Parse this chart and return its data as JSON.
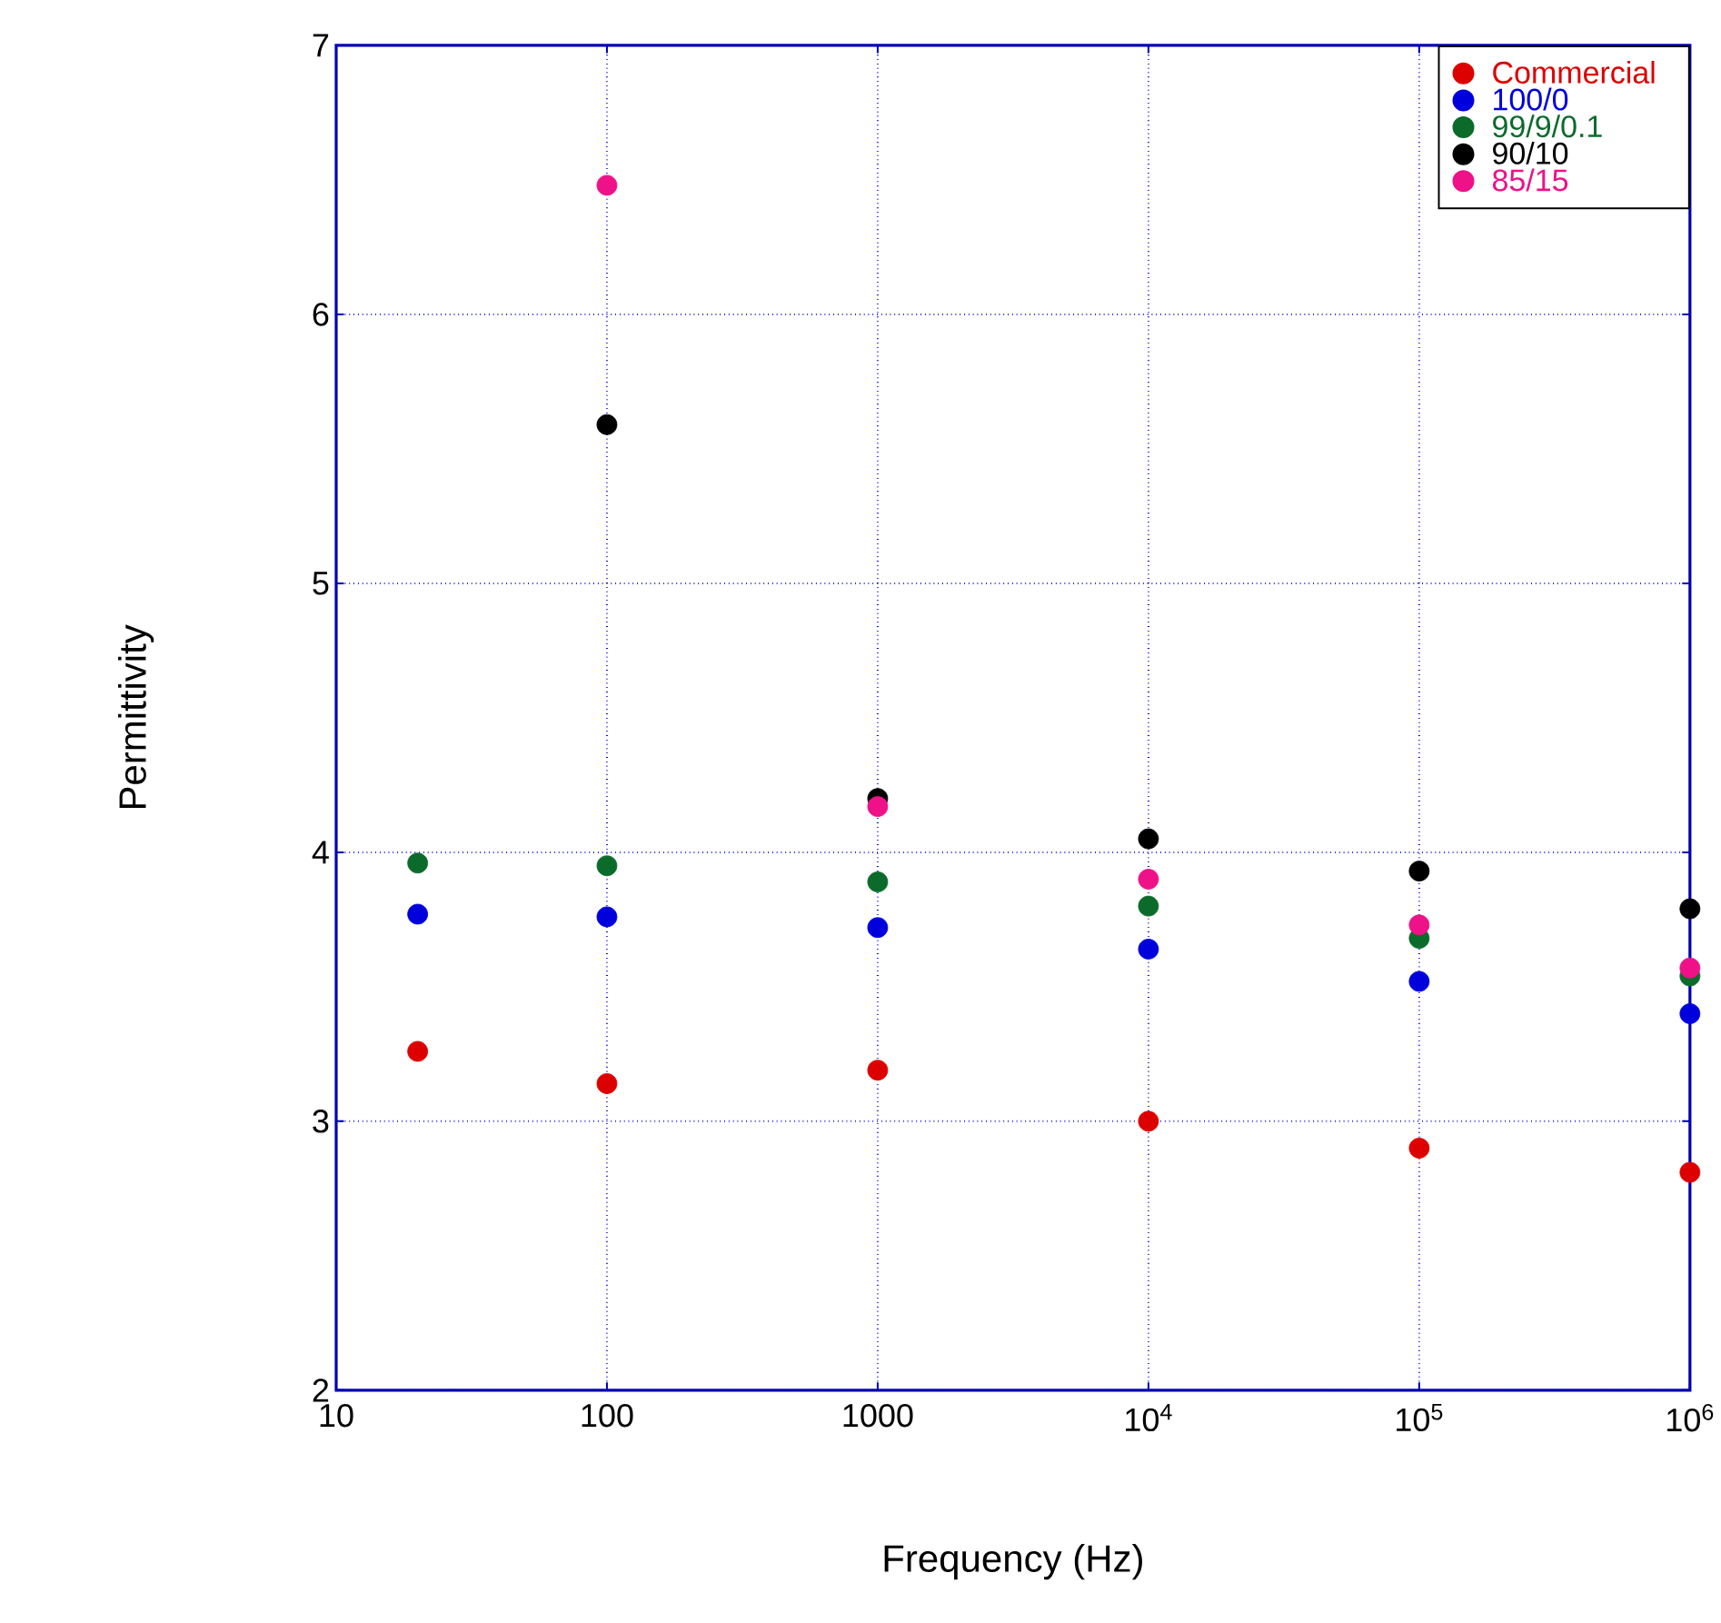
{
  "chart_data": {
    "type": "scatter",
    "xlabel": "Frequency (Hz)",
    "ylabel": "Permittivity",
    "log": "x",
    "xlim": [
      10,
      1000000
    ],
    "ylim": [
      2,
      7
    ],
    "xticks": [
      10,
      100,
      1000,
      {
        "value": 10000,
        "label": "10$^{4}$"
      },
      {
        "value": 100000,
        "label": "10$^{5}$"
      },
      {
        "value": 1000000,
        "label": "10$^{6}$"
      }
    ],
    "yticks": [
      2,
      3,
      4,
      5,
      6,
      7
    ],
    "grid": true,
    "legend": "top right",
    "marker": "circle",
    "series": [
      {
        "name": "Commercial",
        "color": "#dd0000",
        "x": [
          20,
          100,
          1000,
          10000,
          100000,
          1000000
        ],
        "values": [
          3.26,
          3.14,
          3.19,
          3.0,
          2.9,
          2.81
        ]
      },
      {
        "name": "100/0",
        "color": "#0000dd",
        "x": [
          20,
          100,
          1000,
          10000,
          100000,
          1000000
        ],
        "values": [
          3.77,
          3.76,
          3.72,
          3.64,
          3.52,
          3.4
        ]
      },
      {
        "name": "99/9/0.1",
        "color": "#0b6b2b",
        "x": [
          20,
          100,
          1000,
          10000,
          100000,
          1000000
        ],
        "values": [
          3.96,
          3.95,
          3.89,
          3.8,
          3.68,
          3.54
        ]
      },
      {
        "name": "90/10",
        "color": "#000000",
        "x": [
          100,
          1000,
          10000,
          100000,
          1000000
        ],
        "values": [
          5.59,
          4.2,
          4.05,
          3.93,
          3.79
        ]
      },
      {
        "name": "85/15",
        "color": "#ee1188",
        "x": [
          100,
          1000,
          10000,
          100000,
          1000000
        ],
        "values": [
          6.48,
          4.17,
          3.9,
          3.73,
          3.57
        ]
      }
    ]
  }
}
